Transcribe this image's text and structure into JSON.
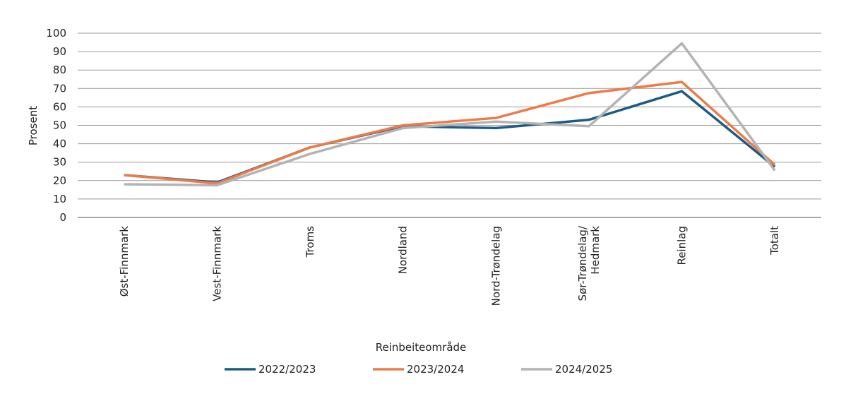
{
  "chart_data": {
    "type": "line",
    "y_label": "Prosent",
    "x_label": "Reinbeiteområde",
    "categories": [
      "Øst-Finnmark",
      "Vest-Finnmark",
      "Troms",
      "Nordland",
      "Nord-Trøndelag",
      "Sør-Trøndelag/\nHedmark",
      "Reinlag",
      "Totalt"
    ],
    "series": [
      {
        "name": "2022/2023",
        "color": "#1d5b87",
        "values": [
          23,
          19,
          38,
          49.5,
          48.5,
          53,
          68.5,
          27.5
        ]
      },
      {
        "name": "2023/2024",
        "color": "#ed7b47",
        "values": [
          23,
          18.5,
          38,
          50,
          54,
          67.5,
          73.5,
          28.5
        ]
      },
      {
        "name": "2024/2025",
        "color": "#b3b3b3",
        "values": [
          18,
          17.5,
          34.5,
          48.5,
          52,
          49.5,
          94.5,
          25.5
        ]
      }
    ],
    "ylim": [
      0,
      100
    ],
    "yticks": [
      0,
      10,
      20,
      30,
      40,
      50,
      60,
      70,
      80,
      90,
      100
    ],
    "grid": true,
    "legend": "bottom"
  }
}
